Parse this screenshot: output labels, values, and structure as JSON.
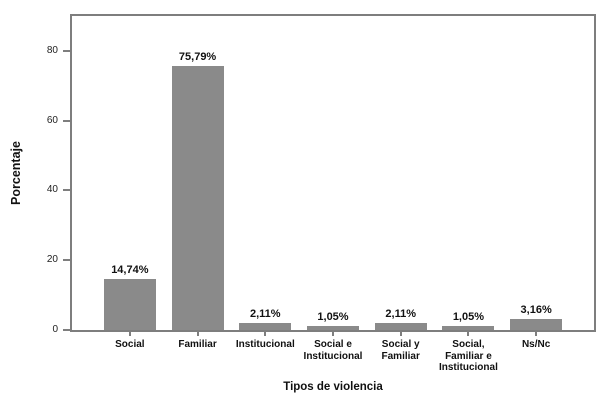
{
  "chart_data": {
    "type": "bar",
    "title": "",
    "xlabel": "Tipos de violencia",
    "ylabel": "Porcentaje",
    "categories": [
      "Social",
      "Familiar",
      "Institucional",
      "Social e Institucional",
      "Social y Familiar",
      "Social, Familiar e Institucional",
      "Ns/Nc"
    ],
    "category_labels": [
      "Social",
      "Familiar",
      "Institucional",
      "Social e\nInstitucional",
      "Social y\nFamiliar",
      "Social,\nFamiliar e\nInstitucional",
      "Ns/Nc"
    ],
    "values": [
      14.74,
      75.79,
      2.11,
      1.05,
      2.11,
      1.05,
      3.16
    ],
    "value_labels": [
      "14,74%",
      "75,79%",
      "2,11%",
      "1,05%",
      "2,11%",
      "1,05%",
      "3,16%"
    ],
    "yticks": [
      0,
      20,
      40,
      60,
      80
    ],
    "ylim": [
      0,
      90
    ],
    "grid": false,
    "legend": false,
    "bar_color": "#8a8a8a",
    "frame_color": "#7e7e7e",
    "text_color": "#111111"
  }
}
